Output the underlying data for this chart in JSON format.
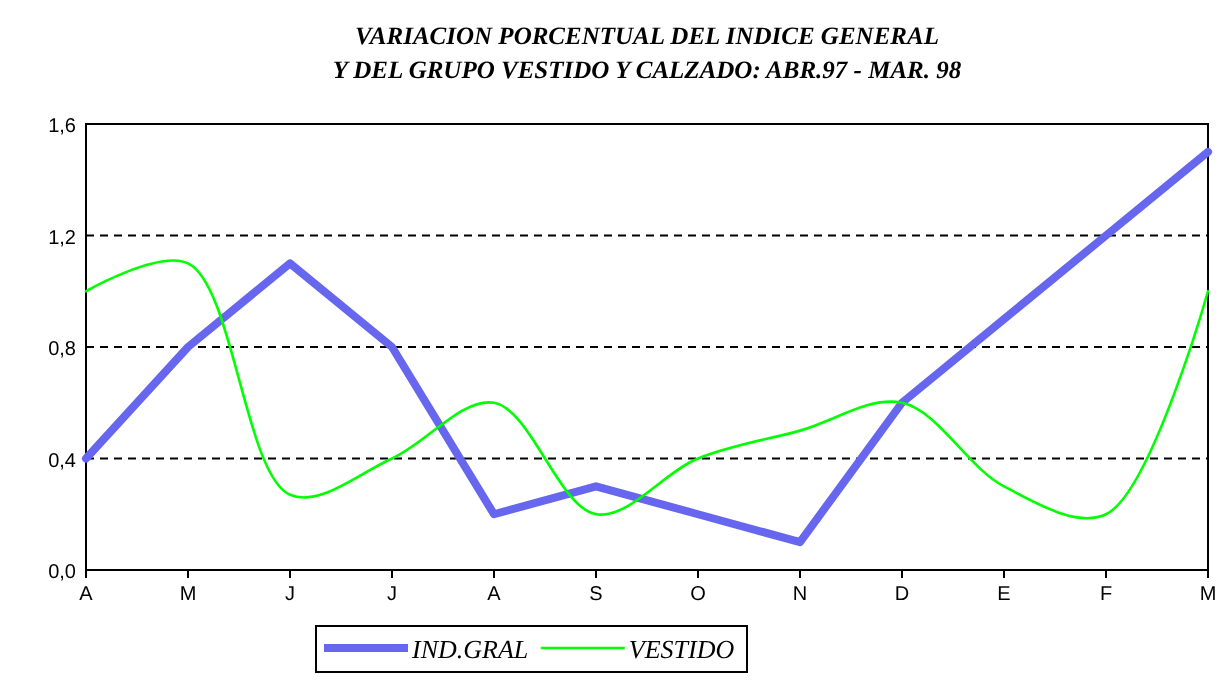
{
  "chart_data": {
    "type": "line",
    "title": "VARIACION PORCENTUAL DEL INDICE GENERAL\nY DEL GRUPO VESTIDO Y CALZADO: ABR.97 - MAR. 98",
    "categories": [
      "A",
      "M",
      "J",
      "J",
      "A",
      "S",
      "O",
      "N",
      "D",
      "E",
      "F",
      "M"
    ],
    "series": [
      {
        "name": "IND.GRAL",
        "color": "#6666ee",
        "values": [
          0.4,
          0.8,
          1.1,
          0.8,
          0.2,
          0.3,
          0.2,
          0.1,
          0.6,
          0.9,
          1.2,
          1.5
        ]
      },
      {
        "name": "VESTIDO",
        "color": "#00ff00",
        "values": [
          1.0,
          1.1,
          0.27,
          0.4,
          0.6,
          0.2,
          0.4,
          0.5,
          0.6,
          0.3,
          0.2,
          1.0
        ]
      }
    ],
    "ylim": [
      0,
      1.6
    ],
    "yticks": [
      {
        "value": 0,
        "label": "0,0"
      },
      {
        "value": 0.4,
        "label": "0,4"
      },
      {
        "value": 0.8,
        "label": "0,8"
      },
      {
        "value": 1.2,
        "label": "1,2"
      },
      {
        "value": 1.6,
        "label": "1,6"
      }
    ],
    "grid": "y",
    "legend": "bottom"
  }
}
